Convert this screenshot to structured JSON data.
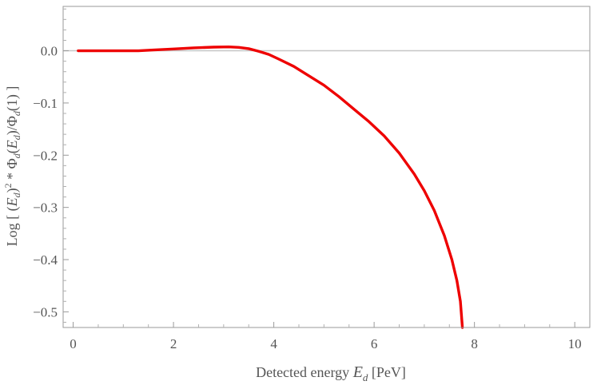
{
  "chart_data": {
    "type": "line",
    "title": "",
    "xlabel": "Detected energy E_d [PeV]",
    "ylabel": "Log [ (E_d)^2 * Φ_d(E_d)/Φ_d(1) ]",
    "xlabel_parts": {
      "pre": "Detected energy ",
      "var": "E",
      "sub": "d",
      "post": " [PeV]"
    },
    "ylabel_parts": {
      "p1": "Log [ (",
      "v1": "E",
      "s1": "d",
      "p2": ")",
      "sup": "2",
      "p3": " * ",
      "v2": "Φ",
      "s2": "d",
      "p4": "(",
      "v3": "E",
      "s3": "d",
      "p5": ")/",
      "v4": "Φ",
      "s4": "d",
      "p6": "(1) ]"
    },
    "xlim": [
      -0.2,
      10.3
    ],
    "ylim": [
      -0.53,
      0.085
    ],
    "x_ticks": [
      0,
      2,
      4,
      6,
      8,
      10
    ],
    "x_tick_labels": [
      "0",
      "2",
      "4",
      "6",
      "8",
      "10"
    ],
    "y_ticks": [
      0.0,
      -0.1,
      -0.2,
      -0.3,
      -0.4,
      -0.5
    ],
    "y_tick_labels": [
      "0.0",
      "−0.1",
      "−0.2",
      "−0.3",
      "−0.4",
      "−0.5"
    ],
    "reference_line_y": 0,
    "grid": false,
    "series": [
      {
        "color": "#ee0000",
        "x": [
          0.1,
          0.5,
          1.0,
          1.3,
          1.6,
          2.0,
          2.4,
          2.8,
          3.1,
          3.3,
          3.5,
          3.7,
          3.9,
          4.1,
          4.4,
          4.7,
          5.0,
          5.3,
          5.6,
          5.9,
          6.2,
          6.5,
          6.8,
          7.0,
          7.2,
          7.4,
          7.55,
          7.65,
          7.72,
          7.76
        ],
        "y": [
          0.0,
          0.0,
          0.0,
          0.0,
          0.0015,
          0.0035,
          0.0055,
          0.007,
          0.0075,
          0.0065,
          0.004,
          -0.001,
          -0.007,
          -0.016,
          -0.03,
          -0.048,
          -0.066,
          -0.088,
          -0.112,
          -0.136,
          -0.163,
          -0.196,
          -0.236,
          -0.268,
          -0.306,
          -0.354,
          -0.4,
          -0.44,
          -0.48,
          -0.53
        ]
      }
    ]
  }
}
